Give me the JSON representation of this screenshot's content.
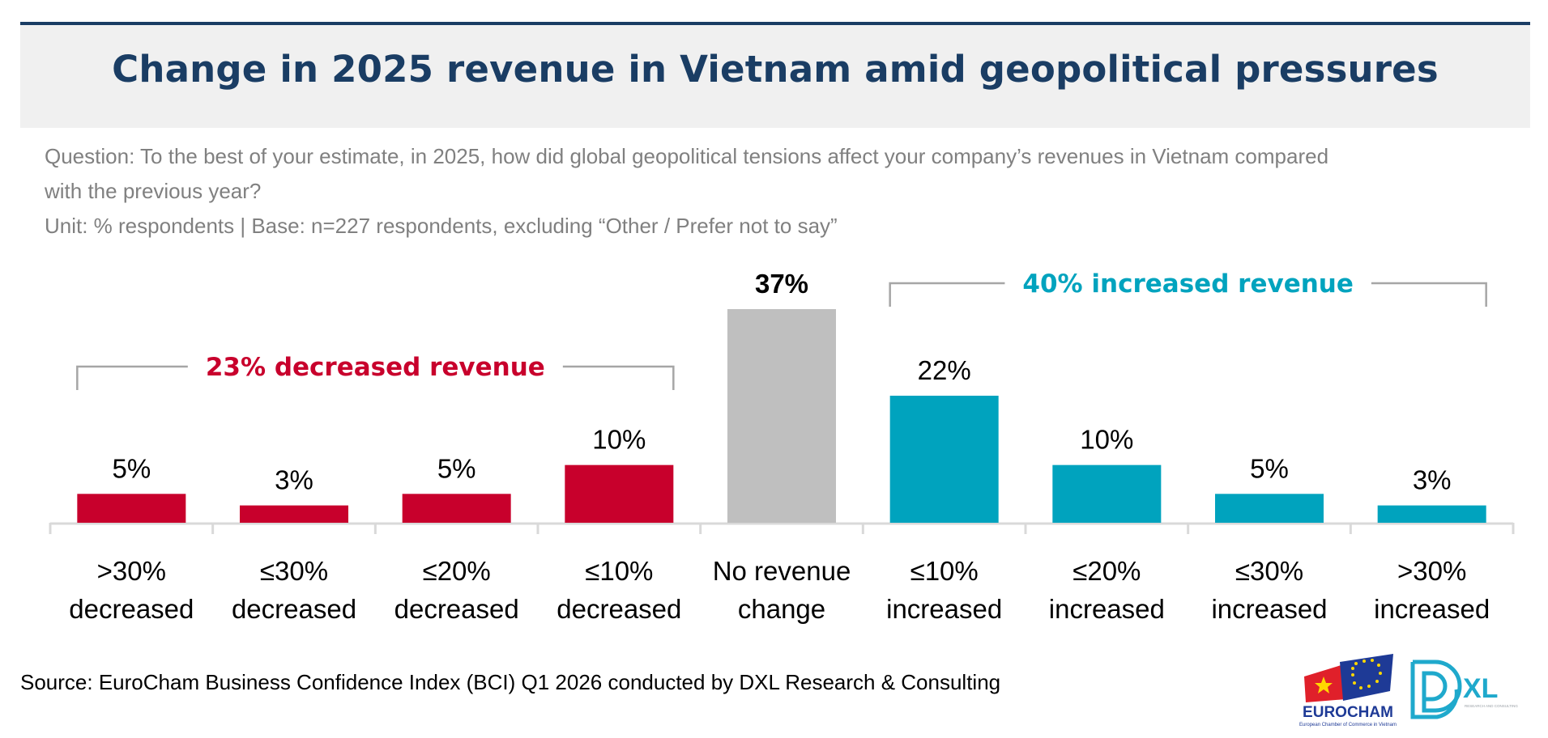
{
  "header": {
    "title": "Change in 2025 revenue in Vietnam amid geopolitical pressures"
  },
  "subtitle": {
    "question_line1": "Question: To the best of your estimate, in 2025, how did global geopolitical tensions affect your company’s revenues in Vietnam compared",
    "question_line2": "with the previous year?",
    "unit_base": "Unit: % respondents | Base: n=227 respondents, excluding “Other / Prefer not to say”"
  },
  "colors": {
    "title": "#1a3d64",
    "decrease": "#c8002c",
    "neutral": "#bfbfbf",
    "increase": "#00a3be",
    "subtitle": "#808080",
    "bracket": "#a6a6a6",
    "axis": "#d9d9d9"
  },
  "chart_data": {
    "type": "bar",
    "title": "Change in 2025 revenue in Vietnam amid geopolitical pressures",
    "xlabel": "",
    "ylabel": "% respondents",
    "ylim": [
      0,
      37
    ],
    "grid": false,
    "categories": [
      [
        ">30%",
        "decreased"
      ],
      [
        "≤30%",
        "decreased"
      ],
      [
        "≤20%",
        "decreased"
      ],
      [
        "≤10%",
        "decreased"
      ],
      [
        "No revenue",
        "change"
      ],
      [
        "≤10%",
        "increased"
      ],
      [
        "≤20%",
        "increased"
      ],
      [
        "≤30%",
        "increased"
      ],
      [
        ">30%",
        "increased"
      ]
    ],
    "values": [
      5,
      3,
      5,
      10,
      37,
      22,
      10,
      5,
      3
    ],
    "data_labels": [
      "5%",
      "3%",
      "5%",
      "10%",
      "37%",
      "22%",
      "10%",
      "5%",
      "3%"
    ],
    "groups": [
      "decrease",
      "decrease",
      "decrease",
      "decrease",
      "neutral",
      "increase",
      "increase",
      "increase",
      "increase"
    ],
    "annotations": [
      {
        "text": "23% decreased revenue",
        "group": "decrease",
        "span": [
          0,
          3
        ]
      },
      {
        "text": "40% increased revenue",
        "group": "increase",
        "span": [
          5,
          8
        ]
      }
    ]
  },
  "footer": {
    "source": "Source: EuroCham Business Confidence Index (BCI) Q1 2026 conducted by DXL Research & Consulting",
    "logo_eurocham_text": "EUROCHAM",
    "logo_eurocham_sub": "European Chamber of Commerce in Vietnam",
    "logo_dxl_text": "XL",
    "logo_dxl_sub": "RESEARCH AND CONSULTING"
  }
}
